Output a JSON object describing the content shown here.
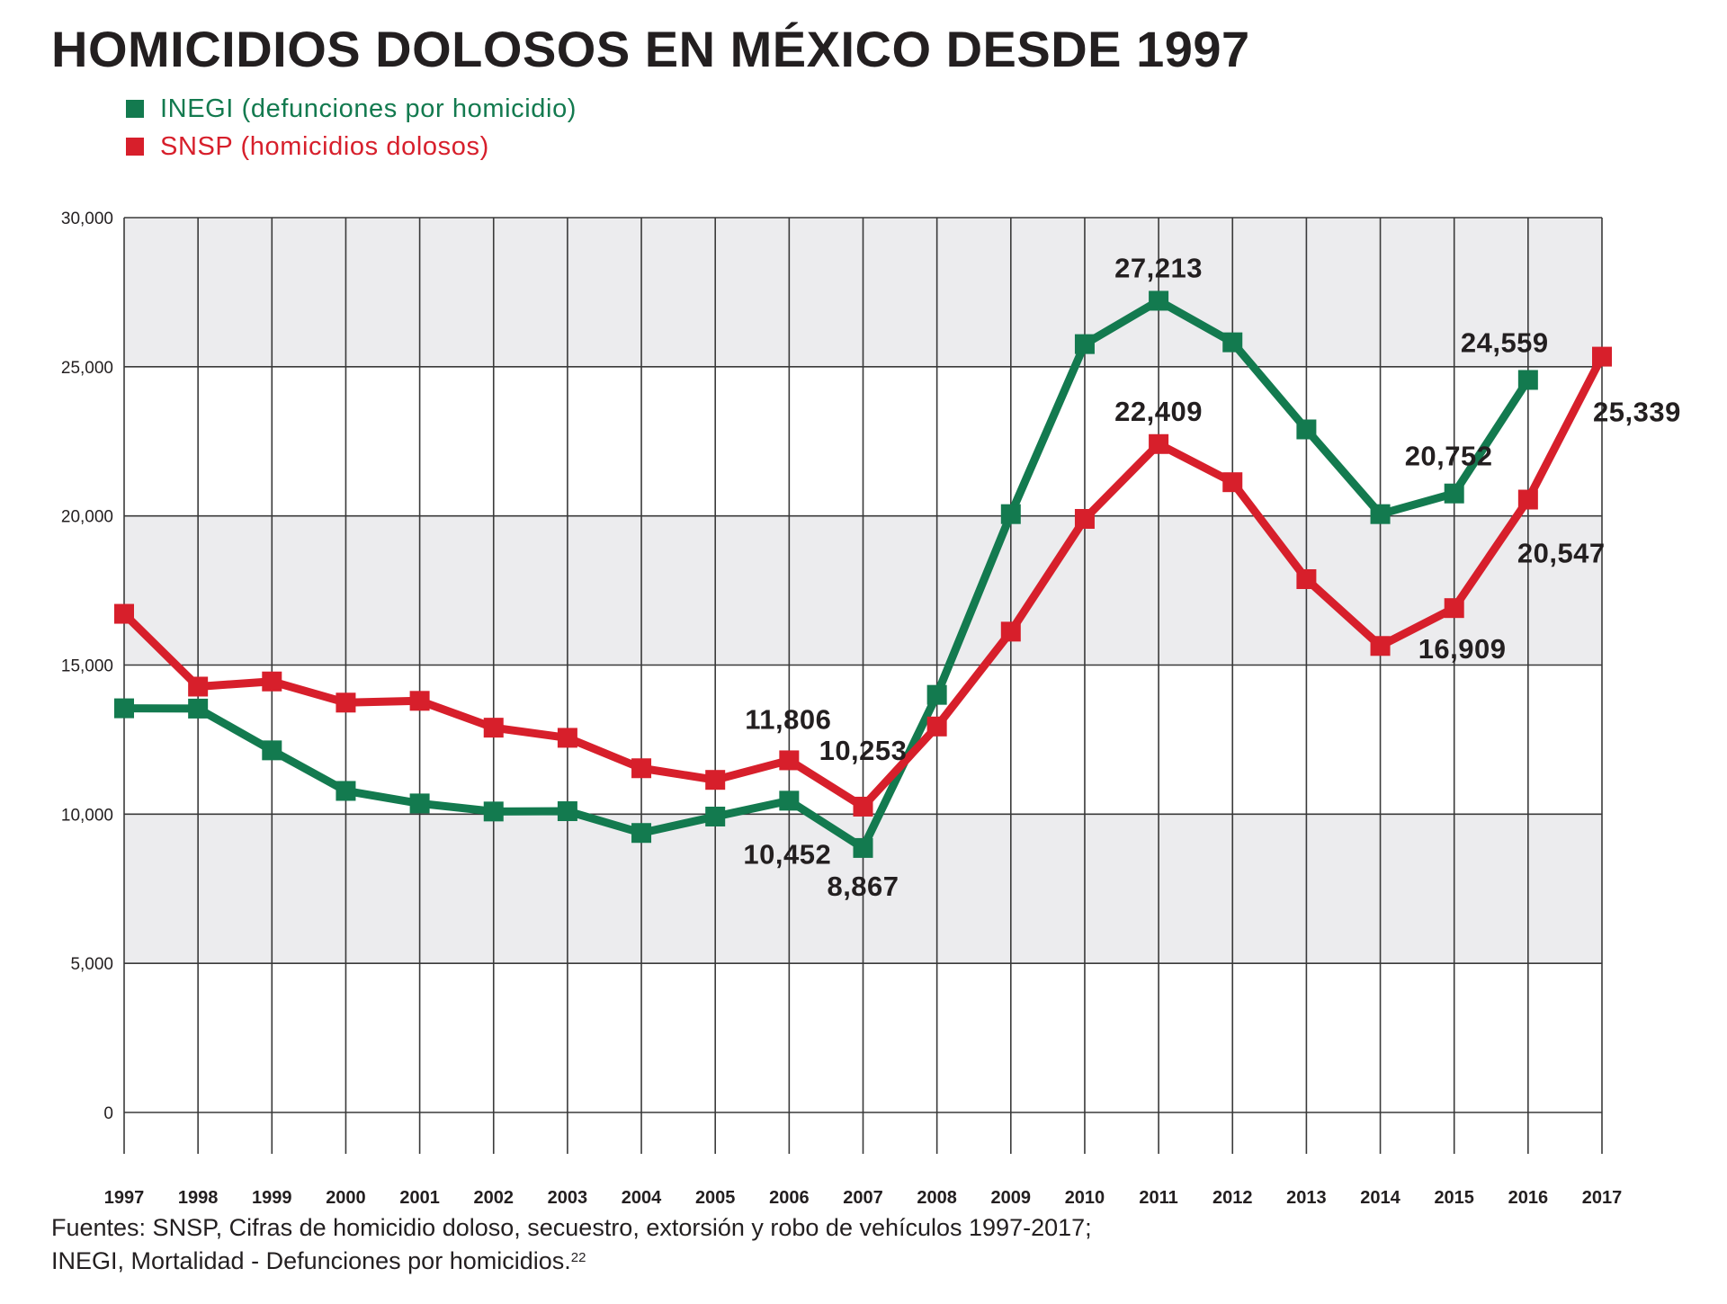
{
  "chart_data": {
    "type": "line",
    "title": "HOMICIDIOS DOLOSOS EN MÉXICO DESDE 1997",
    "xlabel": "",
    "ylabel": "",
    "x": [
      "1997",
      "1998",
      "1999",
      "2000",
      "2001",
      "2002",
      "2003",
      "2004",
      "2005",
      "2006",
      "2007",
      "2008",
      "2009",
      "2010",
      "2011",
      "2012",
      "2013",
      "2014",
      "2015",
      "2016",
      "2017"
    ],
    "ylim": [
      0,
      30000
    ],
    "yticks": [
      0,
      5000,
      10000,
      15000,
      20000,
      25000,
      30000
    ],
    "ytick_labels": [
      "0",
      "5,000",
      "10,000",
      "15,000",
      "20,000",
      "25,000",
      "30,000"
    ],
    "grid": true,
    "legend_position": "top-left",
    "series": [
      {
        "name": "INEGI (defunciones por homicidio)",
        "color": "#137a4f",
        "values": [
          13550,
          13540,
          12140,
          10780,
          10360,
          10090,
          10100,
          9370,
          9920,
          10452,
          8867,
          14000,
          20060,
          25760,
          27213,
          25820,
          22900,
          20060,
          20752,
          24559,
          null
        ],
        "labels": [
          {
            "year": "2006",
            "text": "10,452",
            "pos": "below-left"
          },
          {
            "year": "2007",
            "text": "8,867",
            "pos": "below"
          },
          {
            "year": "2011",
            "text": "27,213",
            "pos": "above"
          },
          {
            "year": "2015",
            "text": "20,752",
            "pos": "above"
          },
          {
            "year": "2016",
            "text": "24,559",
            "pos": "above"
          }
        ]
      },
      {
        "name": "SNSP (homicidios dolosos)",
        "color": "#d71f2b",
        "values": [
          16717,
          14277,
          14450,
          13740,
          13800,
          12900,
          12560,
          11540,
          11150,
          11806,
          10253,
          12940,
          16120,
          19900,
          22409,
          21130,
          17880,
          15640,
          16909,
          20547,
          25339
        ],
        "labels": [
          {
            "year": "2006",
            "text": "11,806",
            "pos": "above"
          },
          {
            "year": "2007",
            "text": "10,253",
            "pos": "above"
          },
          {
            "year": "2011",
            "text": "22,409",
            "pos": "above"
          },
          {
            "year": "2015",
            "text": "16,909",
            "pos": "below-right"
          },
          {
            "year": "2016",
            "text": "20,547",
            "pos": "below-right"
          },
          {
            "year": "2017",
            "text": "25,339",
            "pos": "right"
          }
        ]
      }
    ]
  },
  "legend": [
    {
      "label": "INEGI (defunciones por homicidio)",
      "color": "#137a4f"
    },
    {
      "label": "SNSP (homicidios dolosos)",
      "color": "#d71f2b"
    }
  ],
  "colors": {
    "band_fill": "#ececee",
    "grid": "#3a3a3a",
    "text": "#231f20"
  },
  "footer": {
    "line1": "Fuentes: SNSP, Cifras de homicidio doloso, secuestro, extorsión y robo de vehículos 1997-2017;",
    "line2": "INEGI, Mortalidad - Defunciones por homicidios.",
    "footnote": "22"
  }
}
